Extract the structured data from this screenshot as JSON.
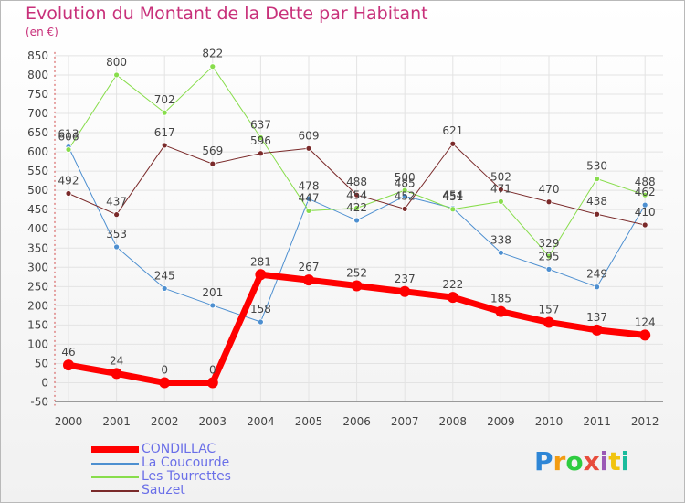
{
  "title": "Evolution du Montant de la Dette par Habitant",
  "subtitle": "(en €)",
  "logo": {
    "text": "Proxiti",
    "colors": [
      "#2e86d6",
      "#f39c12",
      "#2ecc40",
      "#e74c3c",
      "#9b59b6",
      "#f1c40f",
      "#1abc9c"
    ]
  },
  "chart_data": {
    "type": "line",
    "title": "Evolution du Montant de la Dette par Habitant",
    "subtitle": "(en €)",
    "categories": [
      "2000",
      "2001",
      "2002",
      "2003",
      "2004",
      "2005",
      "2006",
      "2007",
      "2008",
      "2009",
      "2010",
      "2011",
      "2012"
    ],
    "ylim": [
      -50,
      850
    ],
    "yticks": [
      -50,
      0,
      50,
      100,
      150,
      200,
      250,
      300,
      350,
      400,
      450,
      500,
      550,
      600,
      650,
      700,
      750,
      800,
      850
    ],
    "grid": true,
    "legend_position": "bottom-left",
    "series": [
      {
        "name": "CONDILLAC",
        "color": "#ff0000",
        "width": 7,
        "values": [
          46,
          24,
          0,
          0,
          281,
          267,
          252,
          237,
          222,
          185,
          157,
          137,
          124
        ]
      },
      {
        "name": "La Coucourde",
        "color": "#4d8fd0",
        "width": 1,
        "values": [
          613,
          353,
          245,
          201,
          158,
          478,
          422,
          485,
          454,
          338,
          295,
          249,
          462
        ]
      },
      {
        "name": "Les Tourrettes",
        "color": "#88dd4c",
        "width": 1,
        "values": [
          606,
          800,
          702,
          822,
          637,
          447,
          454,
          500,
          451,
          471,
          329,
          530,
          488
        ]
      },
      {
        "name": "Sauzet",
        "color": "#7a2a2a",
        "width": 1,
        "values": [
          492,
          437,
          617,
          569,
          596,
          609,
          488,
          452,
          621,
          502,
          470,
          438,
          410
        ]
      }
    ],
    "labels": [
      [
        "46",
        "24",
        "0",
        "0",
        "281",
        "267",
        "252",
        "237",
        "222",
        "185",
        "157",
        "137",
        "124"
      ],
      [
        "613",
        "353",
        "245",
        "201",
        "158",
        "478",
        "422",
        "485",
        "454",
        "338",
        "295",
        "249",
        "462"
      ],
      [
        "606",
        "800",
        "702",
        "822",
        "637",
        "447",
        "454",
        "500",
        "451",
        "471",
        "329",
        "530",
        "488"
      ],
      [
        "492",
        "437",
        "617",
        "569",
        "596",
        "609",
        "488",
        "452",
        "621",
        "502",
        "470",
        "438",
        "410"
      ]
    ]
  }
}
